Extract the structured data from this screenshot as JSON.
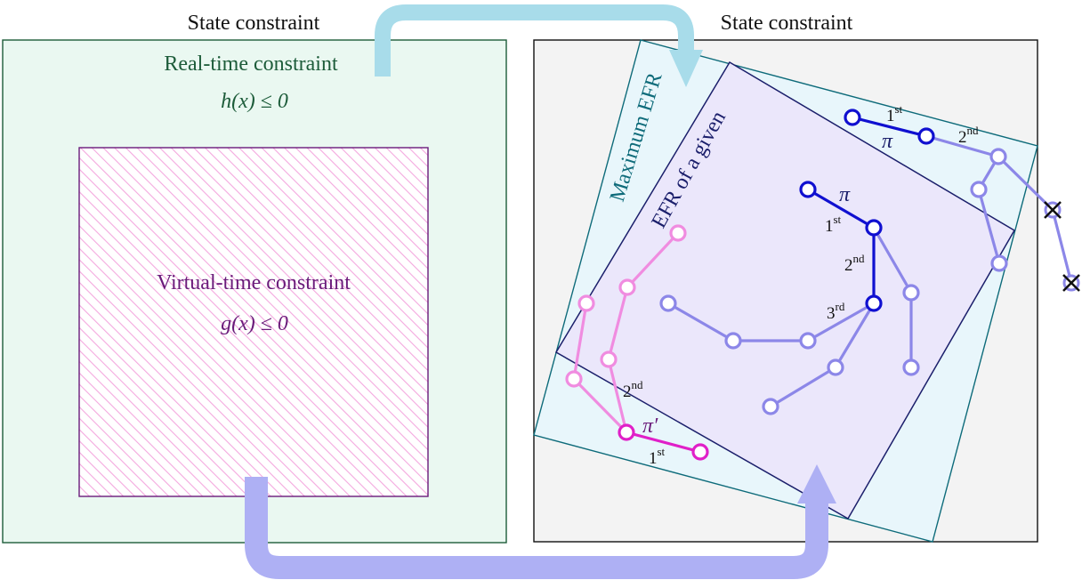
{
  "left_panel": {
    "header": "State constraint",
    "real_time_label": "Real-time constraint",
    "real_time_expr": "h(x) ≤ 0",
    "virtual_time_label": "Virtual-time constraint",
    "virtual_time_expr": "g(x) ≤ 0"
  },
  "right_panel": {
    "header": "State constraint",
    "max_efr_label": "Maximum EFR",
    "efr_given_label": "EFR of a given",
    "policy_label": "π",
    "alt_policy_label": "π′"
  },
  "step_labels": {
    "first": "1",
    "first_sup": "st",
    "second": "2",
    "second_sup": "nd",
    "third": "3",
    "third_sup": "rd"
  },
  "colors": {
    "left_region_fill": "#eaf8f1",
    "left_region_stroke": "#1d5c3a",
    "virtual_stroke": "#6a1b7a",
    "hatch": "#f4a9df",
    "right_bg": "#f3f3f3",
    "max_efr_fill": "#e8f6fb",
    "max_efr_stroke": "#0e6b7a",
    "efr_fill": "#ebe7fb",
    "efr_stroke": "#1b1f6b",
    "policy_dark": "#1010d0",
    "policy_light": "#8c87e8",
    "alt_dark": "#e020c8",
    "alt_light": "#f08ce0",
    "arrow_top": "#a8dcea",
    "arrow_bottom": "#aeb0f4",
    "text_green": "#1d5c3a",
    "text_purple": "#6a1b7a",
    "text_teal": "#0e6b7a",
    "text_navy": "#1b1f6b"
  }
}
